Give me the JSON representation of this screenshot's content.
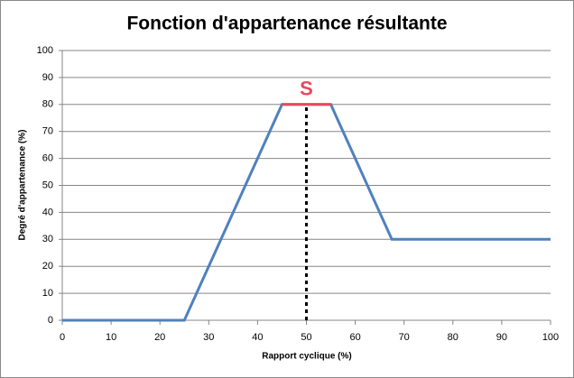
{
  "chart_data": {
    "type": "line",
    "title": "Fonction d'appartenance résultante",
    "x_label": "Rapport cyclique (%)",
    "y_label": "Degré d'appartenance (%)",
    "xlim": [
      0,
      100
    ],
    "xticks": [
      0,
      10,
      20,
      30,
      40,
      50,
      60,
      70,
      80,
      90,
      100
    ],
    "ylim": [
      0,
      100
    ],
    "yticks": [
      0,
      10,
      20,
      30,
      40,
      50,
      60,
      70,
      80,
      90,
      100
    ],
    "grid": true,
    "series": [
      {
        "color": "#4f81bd",
        "x": [
          0,
          25,
          45,
          55,
          67.5,
          100
        ],
        "values": [
          0,
          0,
          80,
          80,
          30,
          30
        ]
      },
      {
        "color": "#e84a5f",
        "x": [
          45,
          55
        ],
        "values": [
          80,
          80
        ]
      },
      {
        "color": "#000000",
        "dashed": true,
        "x": [
          50,
          50
        ],
        "values": [
          0,
          80
        ]
      }
    ],
    "annotations": [
      {
        "text": "S",
        "x": 50,
        "y": 80,
        "color": "#e84a5f"
      }
    ]
  }
}
